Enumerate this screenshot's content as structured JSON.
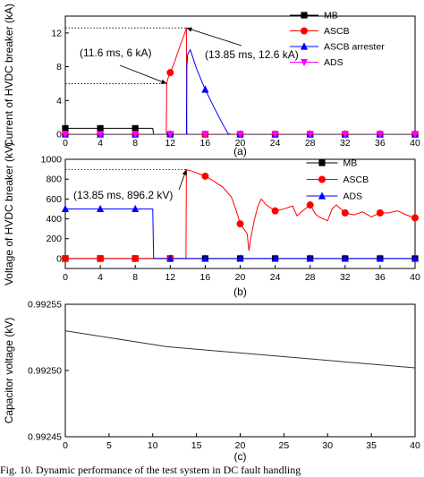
{
  "chart_data": [
    {
      "type": "line",
      "panel": "(a)",
      "ylabel": "Current of HVDC breaker (kA)",
      "xlim": [
        0,
        40
      ],
      "ylim": [
        0,
        14
      ],
      "xticks": [
        0,
        4,
        8,
        12,
        16,
        20,
        24,
        28,
        32,
        36,
        40
      ],
      "xtick_labels": [
        "0",
        "4",
        "8",
        "12",
        "16",
        "20",
        "24",
        "28",
        "32",
        "36",
        "40"
      ],
      "yticks": [
        0,
        4,
        8,
        12
      ],
      "ytick_labels": [
        "0",
        "4",
        "8",
        "12"
      ],
      "legend": "top-right",
      "series": [
        {
          "name": "MB",
          "color": "#000000",
          "marker": "square",
          "x": [
            0,
            10.0,
            10.1,
            40
          ],
          "y": [
            0.7,
            0.7,
            0,
            0
          ],
          "markers_x": [
            0,
            4,
            8,
            12,
            16,
            20,
            24,
            28,
            32,
            36,
            40
          ]
        },
        {
          "name": "ASCB",
          "color": "#ff0000",
          "marker": "circle",
          "x": [
            0,
            11.55,
            11.6,
            11.7,
            12.0,
            12.4,
            12.8,
            13.2,
            13.6,
            13.85,
            13.9,
            14.0,
            40
          ],
          "y": [
            0,
            0,
            6.0,
            6.5,
            7.3,
            8.3,
            9.5,
            10.7,
            11.8,
            12.6,
            0.2,
            0,
            0
          ],
          "markers_x": [
            0,
            4,
            8,
            12,
            16,
            20,
            24,
            28,
            32,
            36,
            40
          ]
        },
        {
          "name": "ASCB arrester",
          "color": "#0000ff",
          "marker": "triangle",
          "x": [
            0,
            13.85,
            13.9,
            14.0,
            14.3,
            15.0,
            16.0,
            17.0,
            18.0,
            18.6,
            19.0,
            40
          ],
          "y": [
            0,
            0,
            8.0,
            9.5,
            10.0,
            7.8,
            5.3,
            3.2,
            1.2,
            0.1,
            0,
            0
          ],
          "markers_x": [
            0,
            4,
            8,
            12,
            16,
            20,
            24,
            28,
            32,
            36,
            40
          ]
        },
        {
          "name": "ADS",
          "color": "#ff00ff",
          "marker": "triangle-down",
          "x": [
            0,
            40
          ],
          "y": [
            0,
            0
          ],
          "markers_x": [
            0,
            4,
            8,
            12,
            16,
            20,
            24,
            28,
            32,
            36,
            40
          ]
        }
      ],
      "annotations": [
        {
          "text": "(11.6 ms, 6 kA)",
          "x": 11.6,
          "y": 6
        },
        {
          "text": "(13.85 ms, 12.6 kA)",
          "x": 13.85,
          "y": 12.6
        }
      ]
    },
    {
      "type": "line",
      "panel": "(b)",
      "ylabel": "Voltage of HVDC breaker (kV)",
      "xlim": [
        0,
        40
      ],
      "ylim": [
        -100,
        1000
      ],
      "xticks": [
        0,
        4,
        8,
        12,
        16,
        20,
        24,
        28,
        32,
        36,
        40
      ],
      "xtick_labels": [
        "0",
        "4",
        "8",
        "12",
        "16",
        "20",
        "24",
        "28",
        "32",
        "36",
        "40"
      ],
      "yticks": [
        0,
        200,
        400,
        600,
        800,
        1000
      ],
      "ytick_labels": [
        "0",
        "200",
        "400",
        "600",
        "800",
        "1000"
      ],
      "legend": "top-right",
      "series": [
        {
          "name": "MB",
          "color": "#000000",
          "marker": "square",
          "x": [
            0,
            40
          ],
          "y": [
            0,
            0
          ],
          "markers_x": [
            0,
            4,
            8,
            12,
            16,
            20,
            24,
            28,
            32,
            36,
            40
          ]
        },
        {
          "name": "ASCB",
          "color": "#ff0000",
          "marker": "circle",
          "x": [
            0,
            11.6,
            11.7,
            13.8,
            13.85,
            14.5,
            16,
            17,
            18,
            19,
            19.6,
            20,
            20.4,
            20.8,
            21.0,
            21.2,
            21.6,
            22,
            22.4,
            23,
            24,
            25,
            26,
            26.5,
            27,
            28,
            28.6,
            29,
            30,
            30.5,
            31,
            32,
            33,
            34,
            35,
            36,
            37,
            38,
            39,
            40
          ],
          "y": [
            0,
            0,
            0,
            0,
            896.2,
            880,
            830,
            780,
            720,
            620,
            470,
            350,
            300,
            250,
            80,
            200,
            380,
            520,
            600,
            540,
            480,
            500,
            530,
            430,
            470,
            540,
            450,
            420,
            380,
            500,
            540,
            460,
            440,
            470,
            420,
            460,
            460,
            480,
            440,
            410
          ],
          "markers_x": [
            0,
            4,
            8,
            12,
            16,
            20,
            24,
            28,
            32,
            36,
            40
          ]
        },
        {
          "name": "ADS",
          "color": "#0000ff",
          "marker": "triangle",
          "x": [
            0,
            10.0,
            10.1,
            40
          ],
          "y": [
            500,
            500,
            0,
            0
          ],
          "markers_x": [
            0,
            4,
            8,
            12,
            16,
            20,
            24,
            28,
            32,
            36,
            40
          ]
        }
      ],
      "annotations": [
        {
          "text": "(13.85 ms, 896.2 kV)",
          "x": 13.85,
          "y": 896.2
        }
      ]
    },
    {
      "type": "line",
      "panel": "(c)",
      "ylabel": "Capacitor voltage (kV)",
      "xlim": [
        0,
        40
      ],
      "ylim": [
        0.99245,
        0.99255
      ],
      "xticks": [
        0,
        5,
        10,
        15,
        20,
        25,
        30,
        35,
        40
      ],
      "xtick_labels": [
        "0",
        "5",
        "10",
        "15",
        "20",
        "25",
        "30",
        "35",
        "40"
      ],
      "yticks": [
        0.99245,
        0.9925,
        0.99255
      ],
      "ytick_labels": [
        "0.99245",
        "0.99250",
        "0.99255"
      ],
      "series": [
        {
          "color": "#333333",
          "x": [
            0,
            11.6,
            40
          ],
          "y": [
            0.99253,
            0.992518,
            0.992502
          ]
        }
      ]
    }
  ],
  "caption": "Fig. 10. Dynamic performance of the test system in DC fault handling"
}
